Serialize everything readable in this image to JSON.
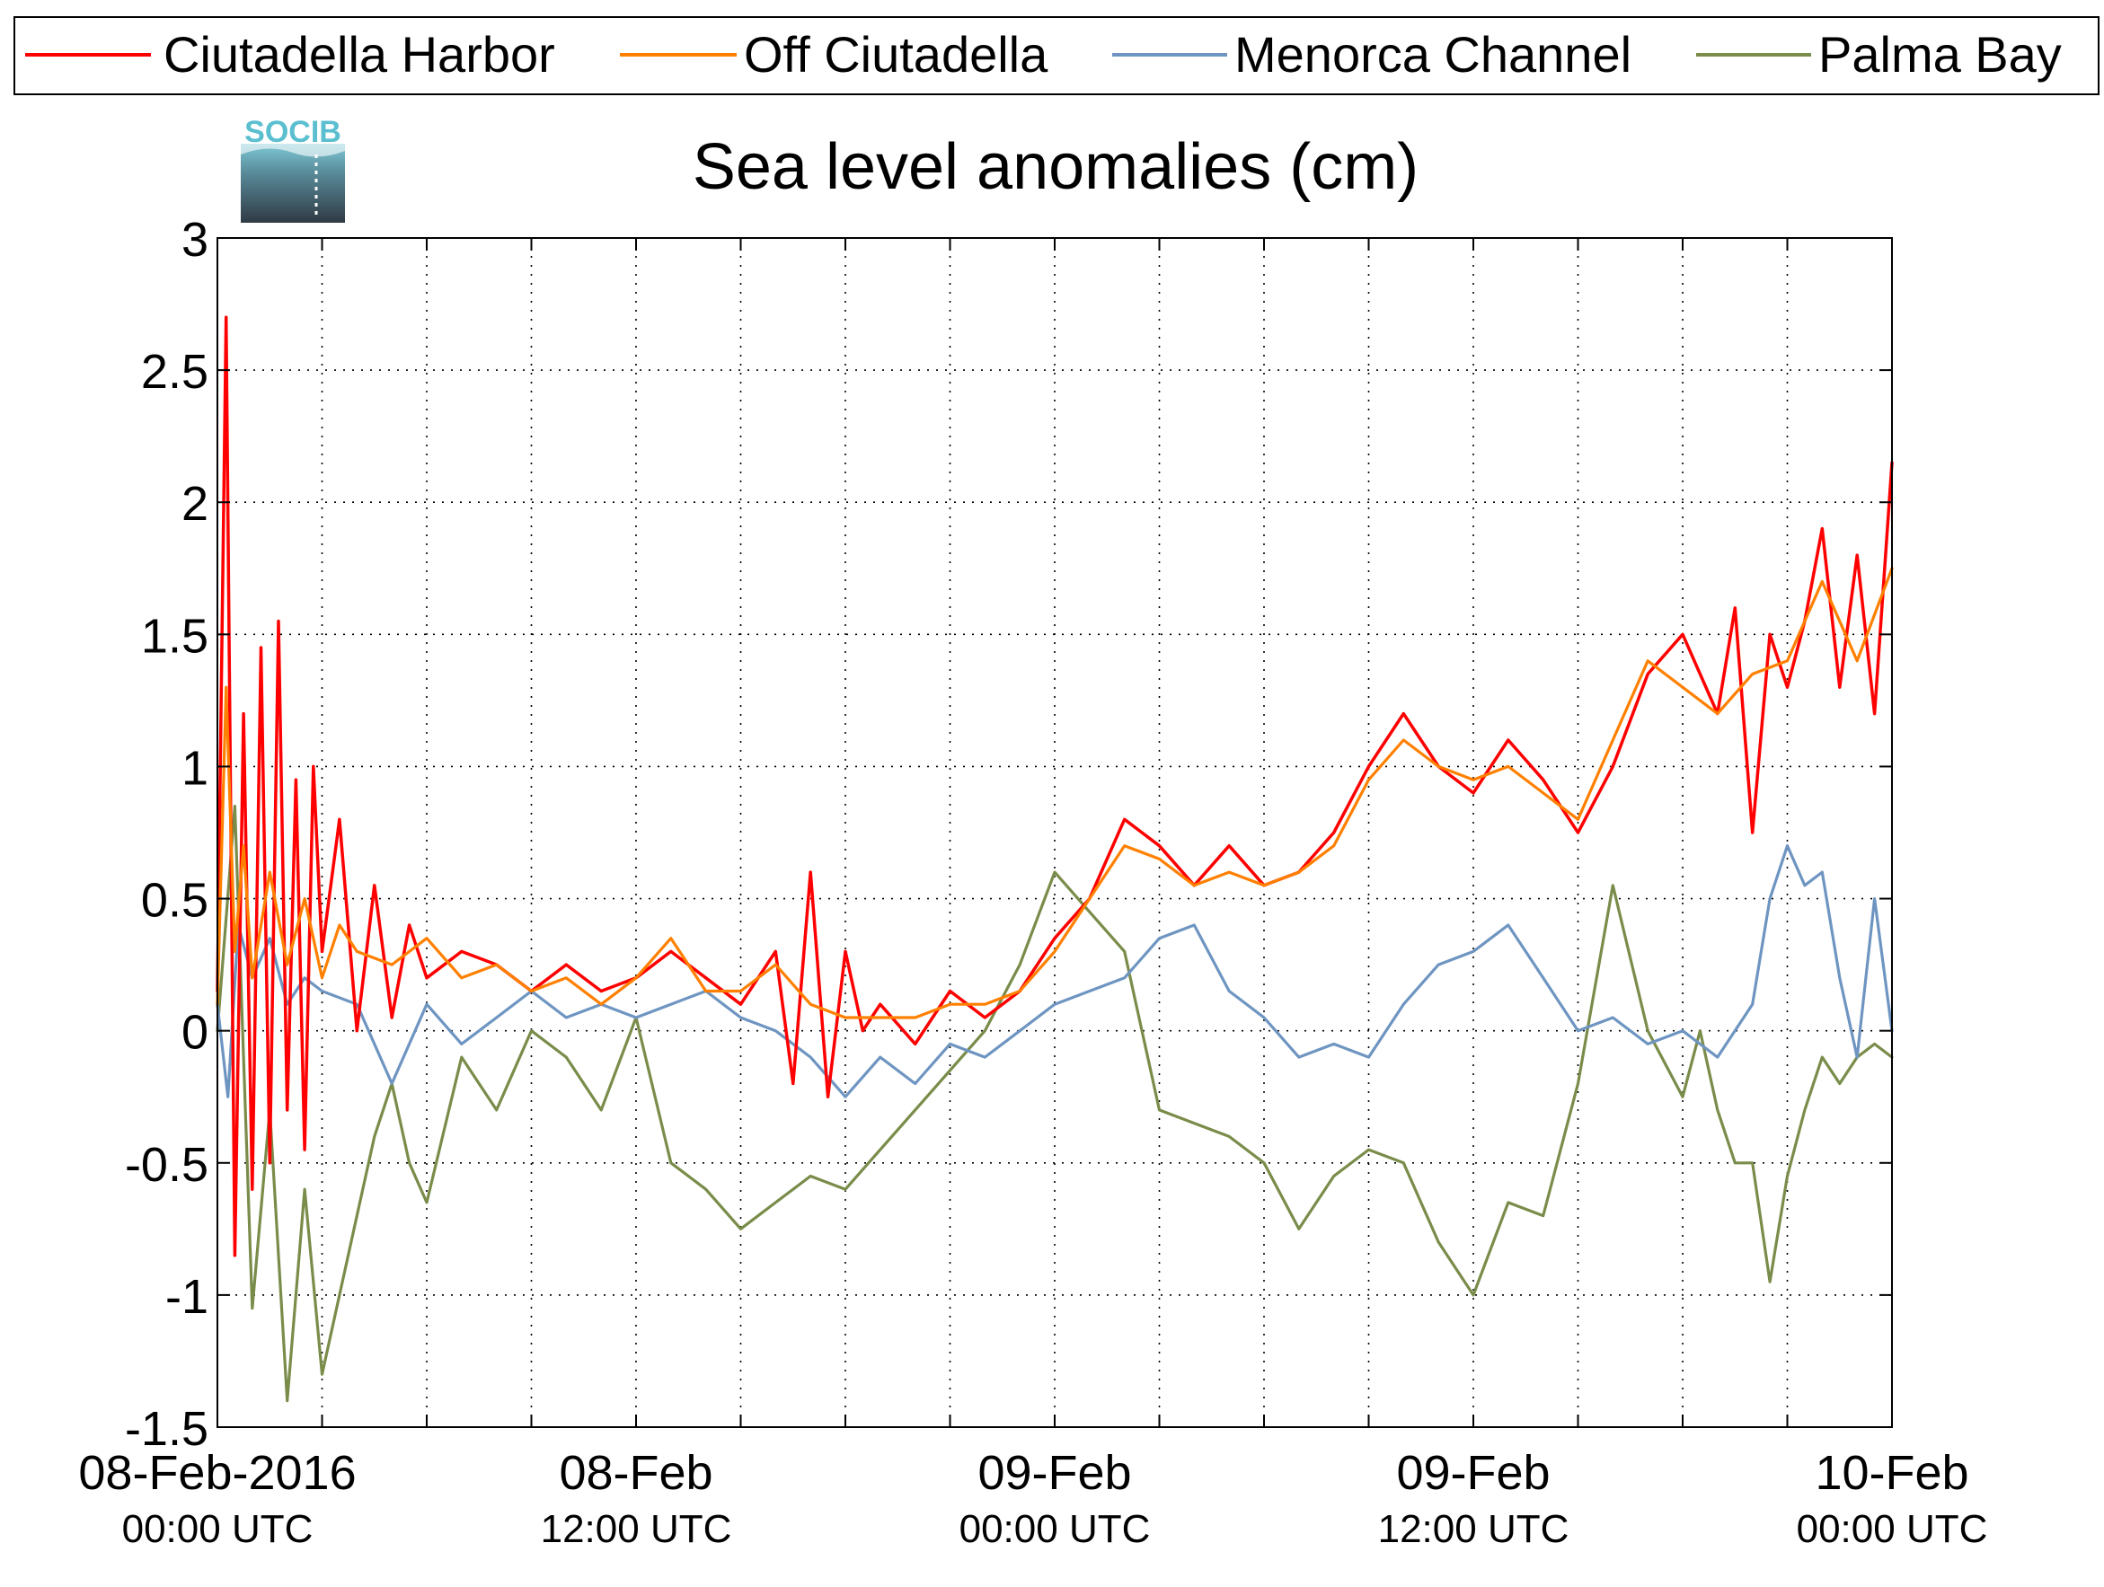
{
  "logo": {
    "text": "SOCIB"
  },
  "chart_data": {
    "type": "line",
    "title": "Sea level anomalies (cm)",
    "xlabel": "",
    "ylabel": "",
    "x_unit": "hours since 08-Feb-2016 00:00 UTC",
    "xlim": [
      0,
      48
    ],
    "ylim": [
      -1.5,
      3
    ],
    "y_ticks": [
      -1.5,
      -1,
      -0.5,
      0,
      0.5,
      1,
      1.5,
      2,
      2.5,
      3
    ],
    "y_tick_labels": [
      "-1.5",
      "-1",
      "-0.5",
      "0",
      "0.5",
      "1",
      "1.5",
      "2",
      "2.5",
      "3"
    ],
    "x_ticks": [
      0,
      3,
      6,
      9,
      12,
      15,
      18,
      21,
      24,
      27,
      30,
      33,
      36,
      39,
      42,
      45,
      48
    ],
    "x_tick_labels": [
      {
        "x": 0,
        "line1": "08-Feb-2016",
        "line2": "00:00 UTC"
      },
      {
        "x": 12,
        "line1": "08-Feb",
        "line2": "12:00 UTC"
      },
      {
        "x": 24,
        "line1": "09-Feb",
        "line2": "00:00 UTC"
      },
      {
        "x": 36,
        "line1": "09-Feb",
        "line2": "12:00 UTC"
      },
      {
        "x": 48,
        "line1": "10-Feb",
        "line2": "00:00 UTC"
      }
    ],
    "grid": true,
    "legend_position": "top",
    "series": [
      {
        "name": "Ciutadella Harbor",
        "color": "#ff0000",
        "x": [
          0,
          0.25,
          0.5,
          0.75,
          1,
          1.25,
          1.5,
          1.75,
          2,
          2.25,
          2.5,
          2.75,
          3,
          3.5,
          4,
          4.5,
          5,
          5.5,
          6,
          7,
          8,
          9,
          10,
          11,
          12,
          13,
          14,
          15,
          16,
          16.5,
          17,
          17.5,
          18,
          18.5,
          19,
          20,
          21,
          22,
          23,
          24,
          25,
          26,
          27,
          28,
          29,
          30,
          31,
          32,
          33,
          34,
          35,
          36,
          37,
          38,
          39,
          40,
          41,
          42,
          43,
          43.5,
          44,
          44.5,
          45,
          45.5,
          46,
          46.5,
          47,
          47.5,
          48
        ],
        "values": [
          0.15,
          2.7,
          -0.85,
          1.2,
          -0.6,
          1.45,
          -0.5,
          1.55,
          -0.3,
          0.95,
          -0.45,
          1.0,
          0.3,
          0.8,
          0.0,
          0.55,
          0.05,
          0.4,
          0.2,
          0.3,
          0.25,
          0.15,
          0.25,
          0.15,
          0.2,
          0.3,
          0.2,
          0.1,
          0.3,
          -0.2,
          0.6,
          -0.25,
          0.3,
          0.0,
          0.1,
          -0.05,
          0.15,
          0.05,
          0.15,
          0.35,
          0.5,
          0.8,
          0.7,
          0.55,
          0.7,
          0.55,
          0.6,
          0.75,
          1.0,
          1.2,
          1.0,
          0.9,
          1.1,
          0.95,
          0.75,
          1.0,
          1.35,
          1.5,
          1.2,
          1.6,
          0.75,
          1.5,
          1.3,
          1.55,
          1.9,
          1.3,
          1.8,
          1.2,
          2.15
        ]
      },
      {
        "name": "Off Ciutadella",
        "color": "#ff8000",
        "x": [
          0,
          0.25,
          0.5,
          0.75,
          1,
          1.5,
          2,
          2.5,
          3,
          3.5,
          4,
          5,
          6,
          7,
          8,
          9,
          10,
          11,
          12,
          13,
          14,
          15,
          16,
          17,
          18,
          19,
          20,
          21,
          22,
          23,
          24,
          25,
          26,
          27,
          28,
          29,
          30,
          31,
          32,
          33,
          34,
          35,
          36,
          37,
          38,
          39,
          40,
          41,
          42,
          43,
          44,
          45,
          46,
          47,
          48
        ],
        "values": [
          0.1,
          1.3,
          0.3,
          0.7,
          0.2,
          0.6,
          0.25,
          0.5,
          0.2,
          0.4,
          0.3,
          0.25,
          0.35,
          0.2,
          0.25,
          0.15,
          0.2,
          0.1,
          0.2,
          0.35,
          0.15,
          0.15,
          0.25,
          0.1,
          0.05,
          0.05,
          0.05,
          0.1,
          0.1,
          0.15,
          0.3,
          0.5,
          0.7,
          0.65,
          0.55,
          0.6,
          0.55,
          0.6,
          0.7,
          0.95,
          1.1,
          1.0,
          0.95,
          1.0,
          0.9,
          0.8,
          1.1,
          1.4,
          1.3,
          1.2,
          1.35,
          1.4,
          1.7,
          1.4,
          1.75
        ]
      },
      {
        "name": "Menorca Channel",
        "color": "#6e95c1",
        "x": [
          0,
          0.3,
          0.6,
          1,
          1.5,
          2,
          2.5,
          3,
          4,
          5,
          6,
          7,
          8,
          9,
          10,
          11,
          12,
          13,
          14,
          15,
          16,
          17,
          18,
          19,
          20,
          21,
          22,
          23,
          24,
          25,
          26,
          27,
          28,
          29,
          30,
          31,
          32,
          33,
          34,
          35,
          36,
          37,
          38,
          39,
          40,
          41,
          42,
          43,
          44,
          44.5,
          45,
          45.5,
          46,
          46.5,
          47,
          47.5,
          48
        ],
        "values": [
          0.1,
          -0.25,
          0.4,
          0.2,
          0.35,
          0.1,
          0.2,
          0.15,
          0.1,
          -0.2,
          0.1,
          -0.05,
          0.05,
          0.15,
          0.05,
          0.1,
          0.05,
          0.1,
          0.15,
          0.05,
          0.0,
          -0.1,
          -0.25,
          -0.1,
          -0.2,
          -0.05,
          -0.1,
          0.0,
          0.1,
          0.15,
          0.2,
          0.35,
          0.4,
          0.15,
          0.05,
          -0.1,
          -0.05,
          -0.1,
          0.1,
          0.25,
          0.3,
          0.4,
          0.2,
          0.0,
          0.05,
          -0.05,
          0.0,
          -0.1,
          0.1,
          0.5,
          0.7,
          0.55,
          0.6,
          0.2,
          -0.1,
          0.5,
          0.0
        ]
      },
      {
        "name": "Palma Bay",
        "color": "#7a8c4a",
        "x": [
          0,
          0.5,
          1,
          1.5,
          2,
          2.5,
          3,
          3.5,
          4,
          4.5,
          5,
          5.5,
          6,
          7,
          8,
          9,
          10,
          11,
          12,
          13,
          14,
          15,
          16,
          17,
          18,
          19,
          20,
          21,
          22,
          23,
          24,
          25,
          26,
          27,
          28,
          29,
          30,
          31,
          32,
          33,
          34,
          35,
          36,
          37,
          38,
          39,
          40,
          41,
          42,
          42.5,
          43,
          43.5,
          44,
          44.5,
          45,
          45.5,
          46,
          46.5,
          47,
          47.5,
          48
        ],
        "values": [
          0.0,
          0.85,
          -1.05,
          -0.3,
          -1.4,
          -0.6,
          -1.3,
          -1.0,
          -0.7,
          -0.4,
          -0.2,
          -0.5,
          -0.65,
          -0.1,
          -0.3,
          0.0,
          -0.1,
          -0.3,
          0.05,
          -0.5,
          -0.6,
          -0.75,
          -0.65,
          -0.55,
          -0.6,
          -0.45,
          -0.3,
          -0.15,
          0.0,
          0.25,
          0.6,
          0.45,
          0.3,
          -0.3,
          -0.35,
          -0.4,
          -0.5,
          -0.75,
          -0.55,
          -0.45,
          -0.5,
          -0.8,
          -1.0,
          -0.65,
          -0.7,
          -0.2,
          0.55,
          0.0,
          -0.25,
          0.0,
          -0.3,
          -0.5,
          -0.5,
          -0.95,
          -0.55,
          -0.3,
          -0.1,
          -0.2,
          -0.1,
          -0.05,
          -0.1
        ]
      }
    ]
  }
}
